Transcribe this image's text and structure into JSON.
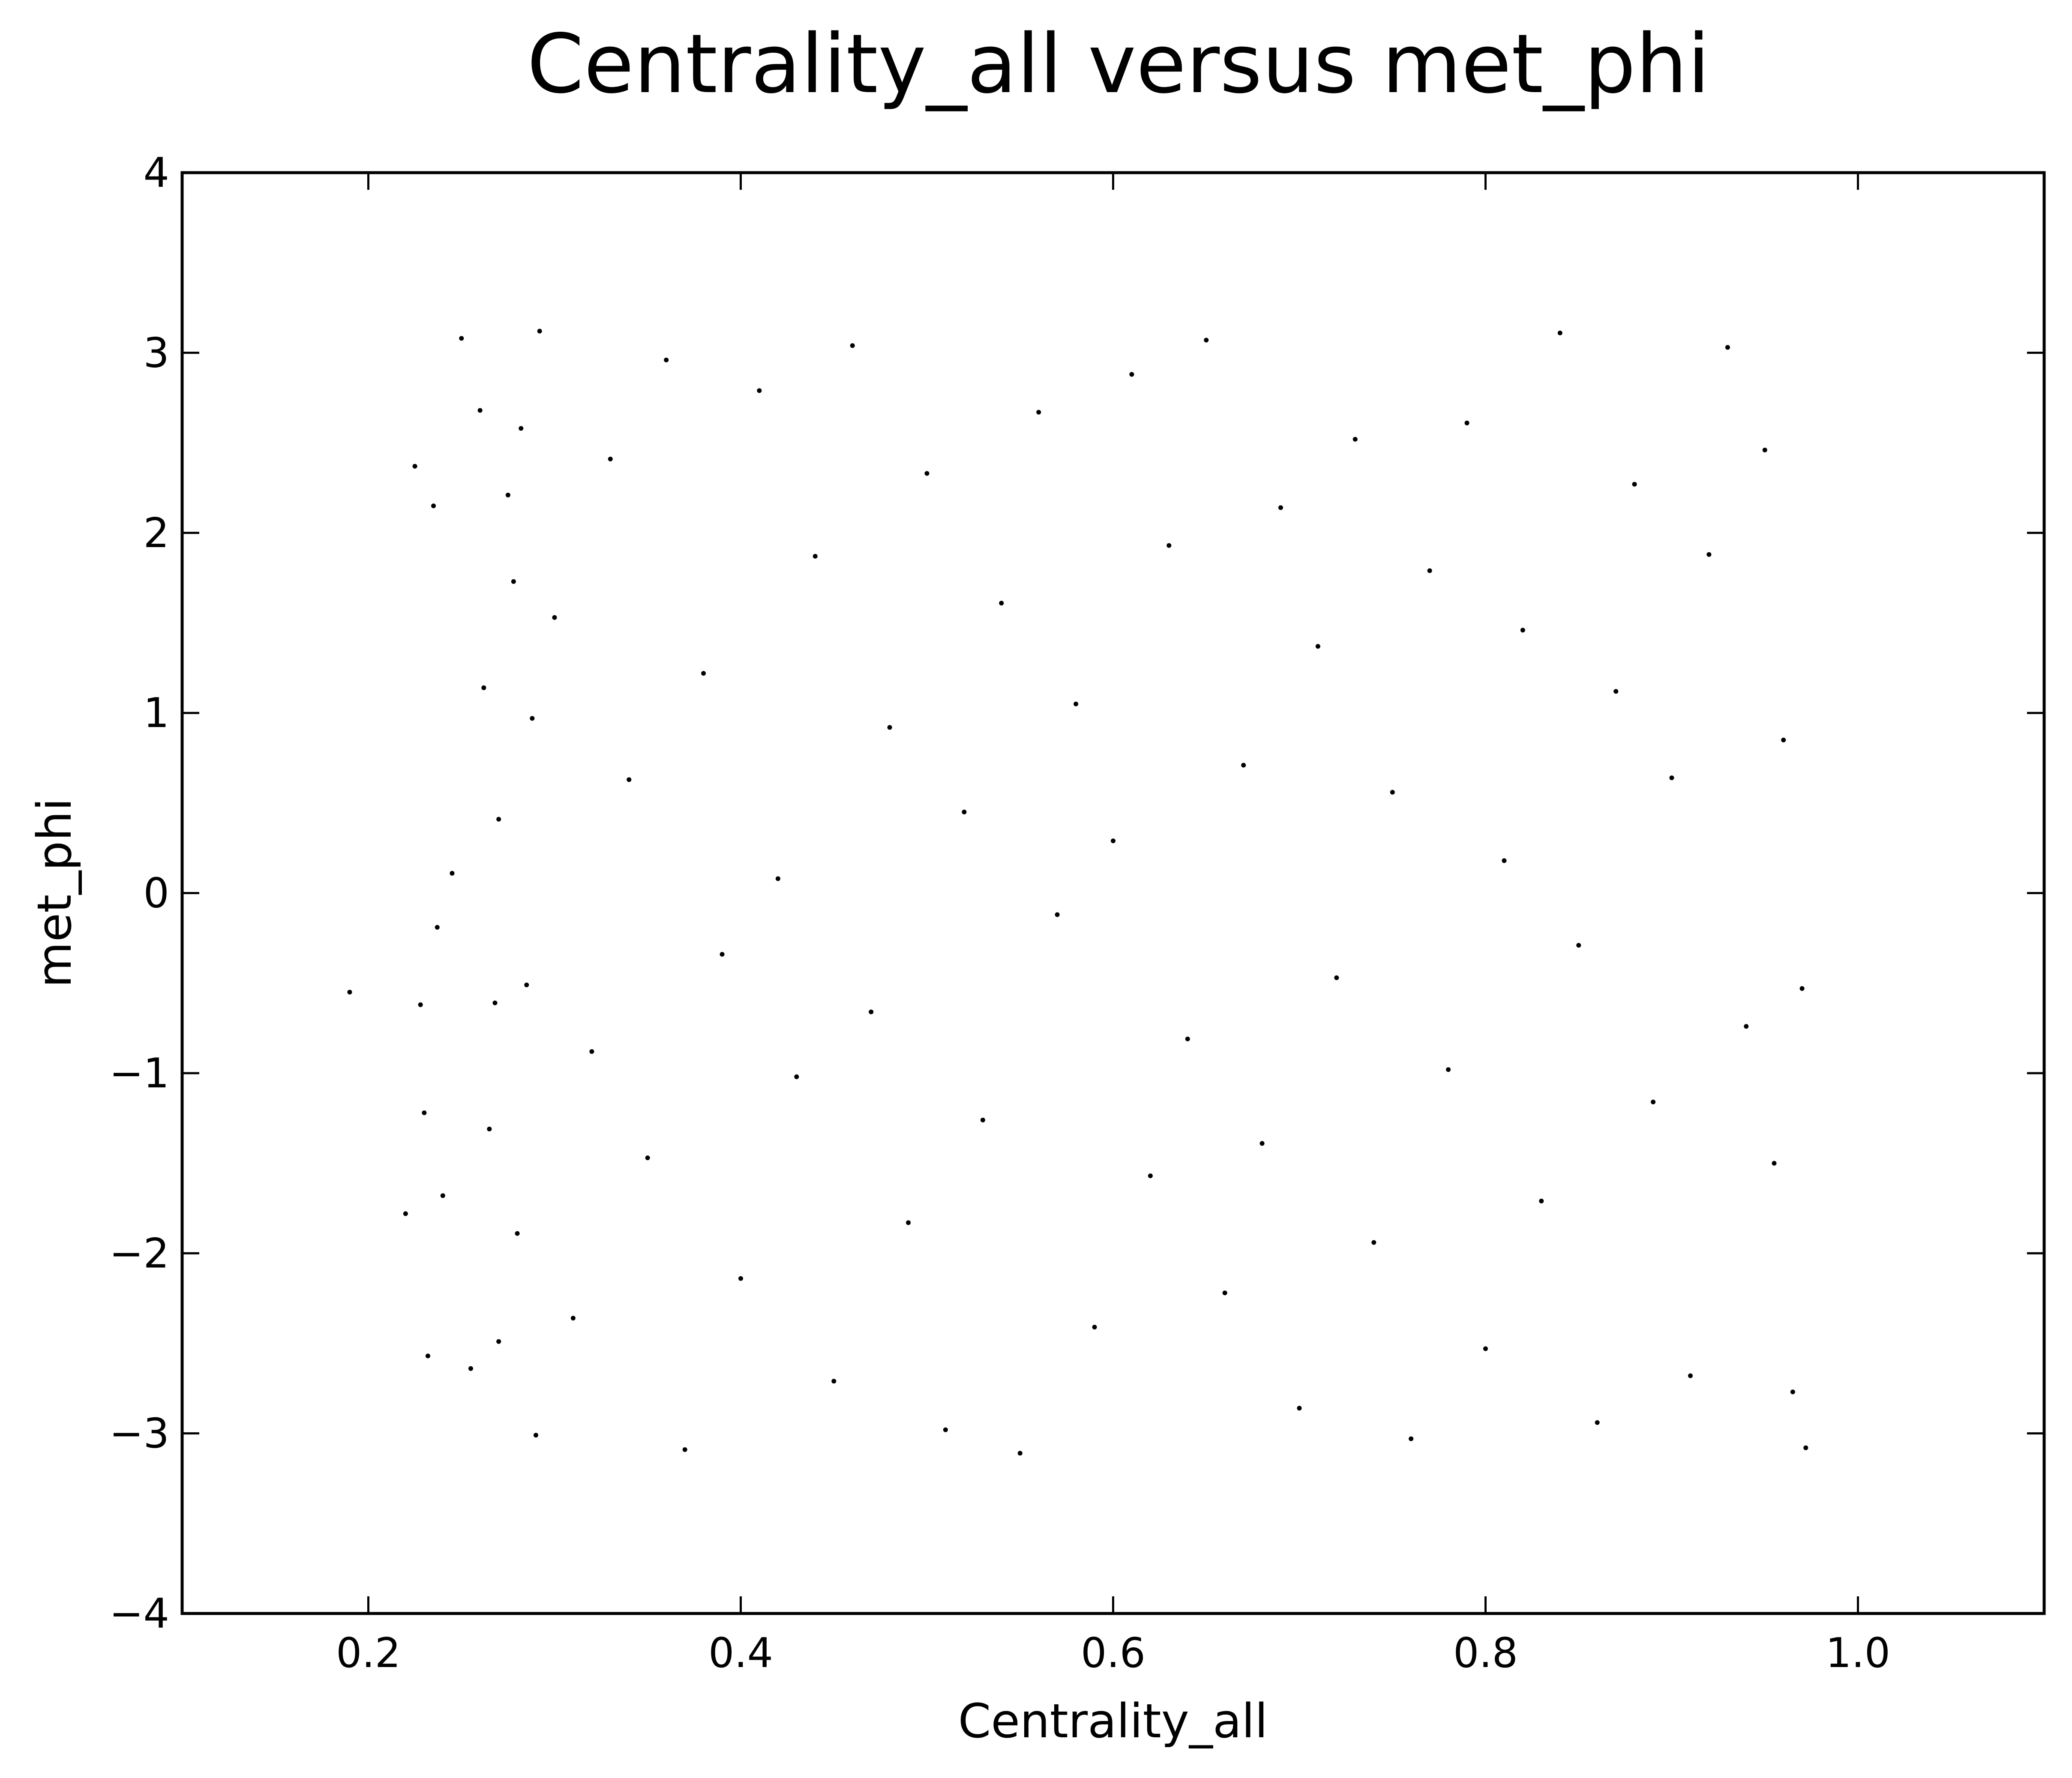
{
  "chart_data": {
    "type": "scatter",
    "title": "Centrality_all versus met_phi",
    "xlabel": "Centrality_all",
    "ylabel": "met_phi",
    "xlim": [
      0.1,
      1.1
    ],
    "ylim": [
      -4,
      4
    ],
    "xticks": [
      0.2,
      0.4,
      0.6,
      0.8,
      1.0
    ],
    "xtick_labels": [
      "0.2",
      "0.4",
      "0.6",
      "0.8",
      "1.0"
    ],
    "yticks": [
      -4,
      -3,
      -2,
      -1,
      0,
      1,
      2,
      3,
      4
    ],
    "ytick_labels": [
      "−4",
      "−3",
      "−2",
      "−1",
      "0",
      "1",
      "2",
      "3",
      "4"
    ],
    "grid": false,
    "legend": "none",
    "marker_color": "#000000",
    "series": [
      {
        "x": [
          0.19,
          0.22,
          0.225,
          0.228,
          0.23,
          0.232,
          0.235,
          0.237,
          0.24,
          0.245,
          0.25,
          0.255,
          0.26,
          0.262,
          0.265,
          0.268,
          0.27,
          0.27,
          0.275,
          0.278,
          0.28,
          0.282,
          0.285,
          0.288,
          0.29,
          0.292,
          0.3,
          0.31,
          0.32,
          0.33,
          0.34,
          0.35,
          0.36,
          0.37,
          0.38,
          0.39,
          0.4,
          0.41,
          0.42,
          0.43,
          0.44,
          0.45,
          0.46,
          0.47,
          0.48,
          0.49,
          0.5,
          0.51,
          0.52,
          0.53,
          0.54,
          0.55,
          0.56,
          0.57,
          0.58,
          0.59,
          0.6,
          0.61,
          0.62,
          0.63,
          0.64,
          0.65,
          0.66,
          0.67,
          0.68,
          0.69,
          0.7,
          0.71,
          0.72,
          0.73,
          0.74,
          0.75,
          0.76,
          0.77,
          0.78,
          0.79,
          0.8,
          0.81,
          0.82,
          0.83,
          0.84,
          0.85,
          0.86,
          0.87,
          0.88,
          0.89,
          0.9,
          0.91,
          0.92,
          0.93,
          0.94,
          0.95,
          0.955,
          0.96,
          0.965,
          0.97,
          0.972
        ],
        "y": [
          -0.55,
          -1.78,
          2.37,
          -0.62,
          -1.22,
          -2.57,
          2.15,
          -0.19,
          -1.68,
          0.11,
          3.08,
          -2.64,
          2.68,
          1.14,
          -1.31,
          -0.61,
          0.41,
          -2.49,
          2.21,
          1.73,
          -1.89,
          2.58,
          -0.51,
          0.97,
          -3.01,
          3.12,
          1.53,
          -2.36,
          -0.88,
          2.41,
          0.63,
          -1.47,
          2.96,
          -3.09,
          1.22,
          -0.34,
          -2.14,
          2.79,
          0.08,
          -1.02,
          1.87,
          -2.71,
          3.04,
          -0.66,
          0.92,
          -1.83,
          2.33,
          -2.98,
          0.45,
          -1.26,
          1.61,
          -3.11,
          2.67,
          -0.12,
          1.05,
          -2.41,
          0.29,
          2.88,
          -1.57,
          1.93,
          -0.81,
          3.07,
          -2.22,
          0.71,
          -1.39,
          2.14,
          -2.86,
          1.37,
          -0.47,
          2.52,
          -1.94,
          0.56,
          -3.03,
          1.79,
          -0.98,
          2.61,
          -2.53,
          0.18,
          1.46,
          -1.71,
          3.11,
          -0.29,
          -2.94,
          1.12,
          2.27,
          -1.16,
          0.64,
          -2.68,
          1.88,
          3.03,
          -0.74,
          2.46,
          -1.5,
          0.85,
          -2.77,
          -0.53,
          -3.08
        ]
      }
    ]
  }
}
